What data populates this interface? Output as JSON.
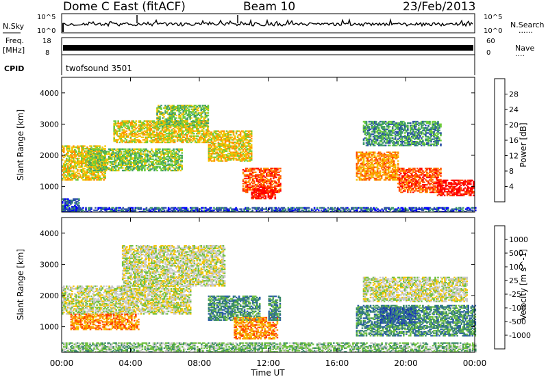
{
  "header": {
    "station": "Dome C East (fitACF)",
    "beam": "Beam 10",
    "date": "23/Feb/2013"
  },
  "noise_panel": {
    "left_label": "N.Sky",
    "right_label": "N.Search",
    "ticks": [
      "10^5",
      "10^0"
    ],
    "right_ticks": [
      "10^5",
      "10^0"
    ],
    "right_dots": "......"
  },
  "freq_panel": {
    "left_label_1": "Freq.",
    "left_label_2": "[MHz]",
    "left_ticks": [
      "18",
      "8"
    ],
    "right_label": "Nave",
    "right_ticks": [
      "60",
      "0"
    ],
    "right_dots": "...."
  },
  "cpid_panel": {
    "left_label": "CPID",
    "program": "twofsound 3501"
  },
  "chart_data": [
    {
      "type": "heatmap",
      "title": "",
      "ylabel": "Slant Range [km]",
      "xlabel": "",
      "ylim": [
        180,
        4500
      ],
      "yticks": [
        "1000",
        "2000",
        "3000",
        "4000"
      ],
      "colorbar": {
        "label": "Power [dB]",
        "ticks": [
          "4",
          "8",
          "12",
          "16",
          "20",
          "24",
          "28"
        ],
        "colors": [
          "#0000ff",
          "#2a4ea6",
          "#3d9a6a",
          "#6dcc3a",
          "#f2c400",
          "#ff8f00",
          "#ff4a00",
          "#ff0000"
        ]
      },
      "regions": [
        {
          "t0": 0.0,
          "t1": 1.0,
          "r0": 180,
          "r1": 600,
          "level": 1
        },
        {
          "t0": 0.0,
          "t1": 2.5,
          "r0": 1200,
          "r1": 2300,
          "level": 4
        },
        {
          "t0": 1.5,
          "t1": 7.0,
          "r0": 1500,
          "r1": 2200,
          "level": 3
        },
        {
          "t0": 3.0,
          "t1": 8.5,
          "r0": 2400,
          "r1": 3100,
          "level": 4
        },
        {
          "t0": 5.5,
          "t1": 8.5,
          "r0": 2900,
          "r1": 3600,
          "level": 3
        },
        {
          "t0": 8.5,
          "t1": 11.0,
          "r0": 1800,
          "r1": 2800,
          "level": 4
        },
        {
          "t0": 10.5,
          "t1": 12.7,
          "r0": 800,
          "r1": 1600,
          "level": 6
        },
        {
          "t0": 11.0,
          "t1": 12.4,
          "r0": 600,
          "r1": 1000,
          "level": 7
        },
        {
          "t0": 17.1,
          "t1": 19.5,
          "r0": 1200,
          "r1": 2100,
          "level": 5
        },
        {
          "t0": 19.5,
          "t1": 22.0,
          "r0": 800,
          "r1": 1600,
          "level": 6
        },
        {
          "t0": 21.8,
          "t1": 23.9,
          "r0": 700,
          "r1": 1200,
          "level": 7
        },
        {
          "t0": 17.5,
          "t1": 22.0,
          "r0": 2300,
          "r1": 3100,
          "level": 2
        },
        {
          "t0": 0.0,
          "t1": 24.0,
          "r0": 180,
          "r1": 330,
          "level": 1
        }
      ]
    },
    {
      "type": "heatmap",
      "title": "",
      "ylabel": "Slant Range [km]",
      "xlabel": "Time UT",
      "ylim": [
        180,
        4500
      ],
      "yticks": [
        "1000",
        "2000",
        "3000",
        "4000"
      ],
      "xticks": [
        "00:00",
        "04:00",
        "08:00",
        "12:00",
        "16:00",
        "20:00",
        "00:00"
      ],
      "xlim_hours": [
        0,
        24
      ],
      "colorbar": {
        "label": "Velocity [m s^-1]",
        "ticks": [
          "1000",
          "500",
          "100",
          "25",
          "-25",
          "-100",
          "-500",
          "-1000"
        ],
        "colors": [
          "#1a36b0",
          "#2d5fa6",
          "#3a8a6a",
          "#70c040",
          "#c8c8c8",
          "#f2c400",
          "#ff8f00",
          "#ff3a00",
          "#ff0000"
        ]
      },
      "regions": [
        {
          "t0": 0.0,
          "t1": 7.5,
          "r0": 1400,
          "r1": 2300,
          "level": 4
        },
        {
          "t0": 3.5,
          "t1": 9.5,
          "r0": 2300,
          "r1": 3600,
          "level": 4
        },
        {
          "t0": 0.5,
          "t1": 4.5,
          "r0": 900,
          "r1": 1400,
          "level": 6
        },
        {
          "t0": 8.5,
          "t1": 11.5,
          "r0": 1200,
          "r1": 2000,
          "level": 2
        },
        {
          "t0": 10.0,
          "t1": 12.5,
          "r0": 600,
          "r1": 1300,
          "level": 6
        },
        {
          "t0": 12.0,
          "t1": 12.7,
          "r0": 1200,
          "r1": 2000,
          "level": 2
        },
        {
          "t0": 17.1,
          "t1": 24.0,
          "r0": 700,
          "r1": 1700,
          "level": 2
        },
        {
          "t0": 18.5,
          "t1": 20.5,
          "r0": 1100,
          "r1": 1600,
          "level": 1
        },
        {
          "t0": 17.5,
          "t1": 23.5,
          "r0": 1800,
          "r1": 2600,
          "level": 4
        },
        {
          "t0": 0.0,
          "t1": 24.0,
          "r0": 180,
          "r1": 500,
          "level": 3
        }
      ]
    }
  ]
}
